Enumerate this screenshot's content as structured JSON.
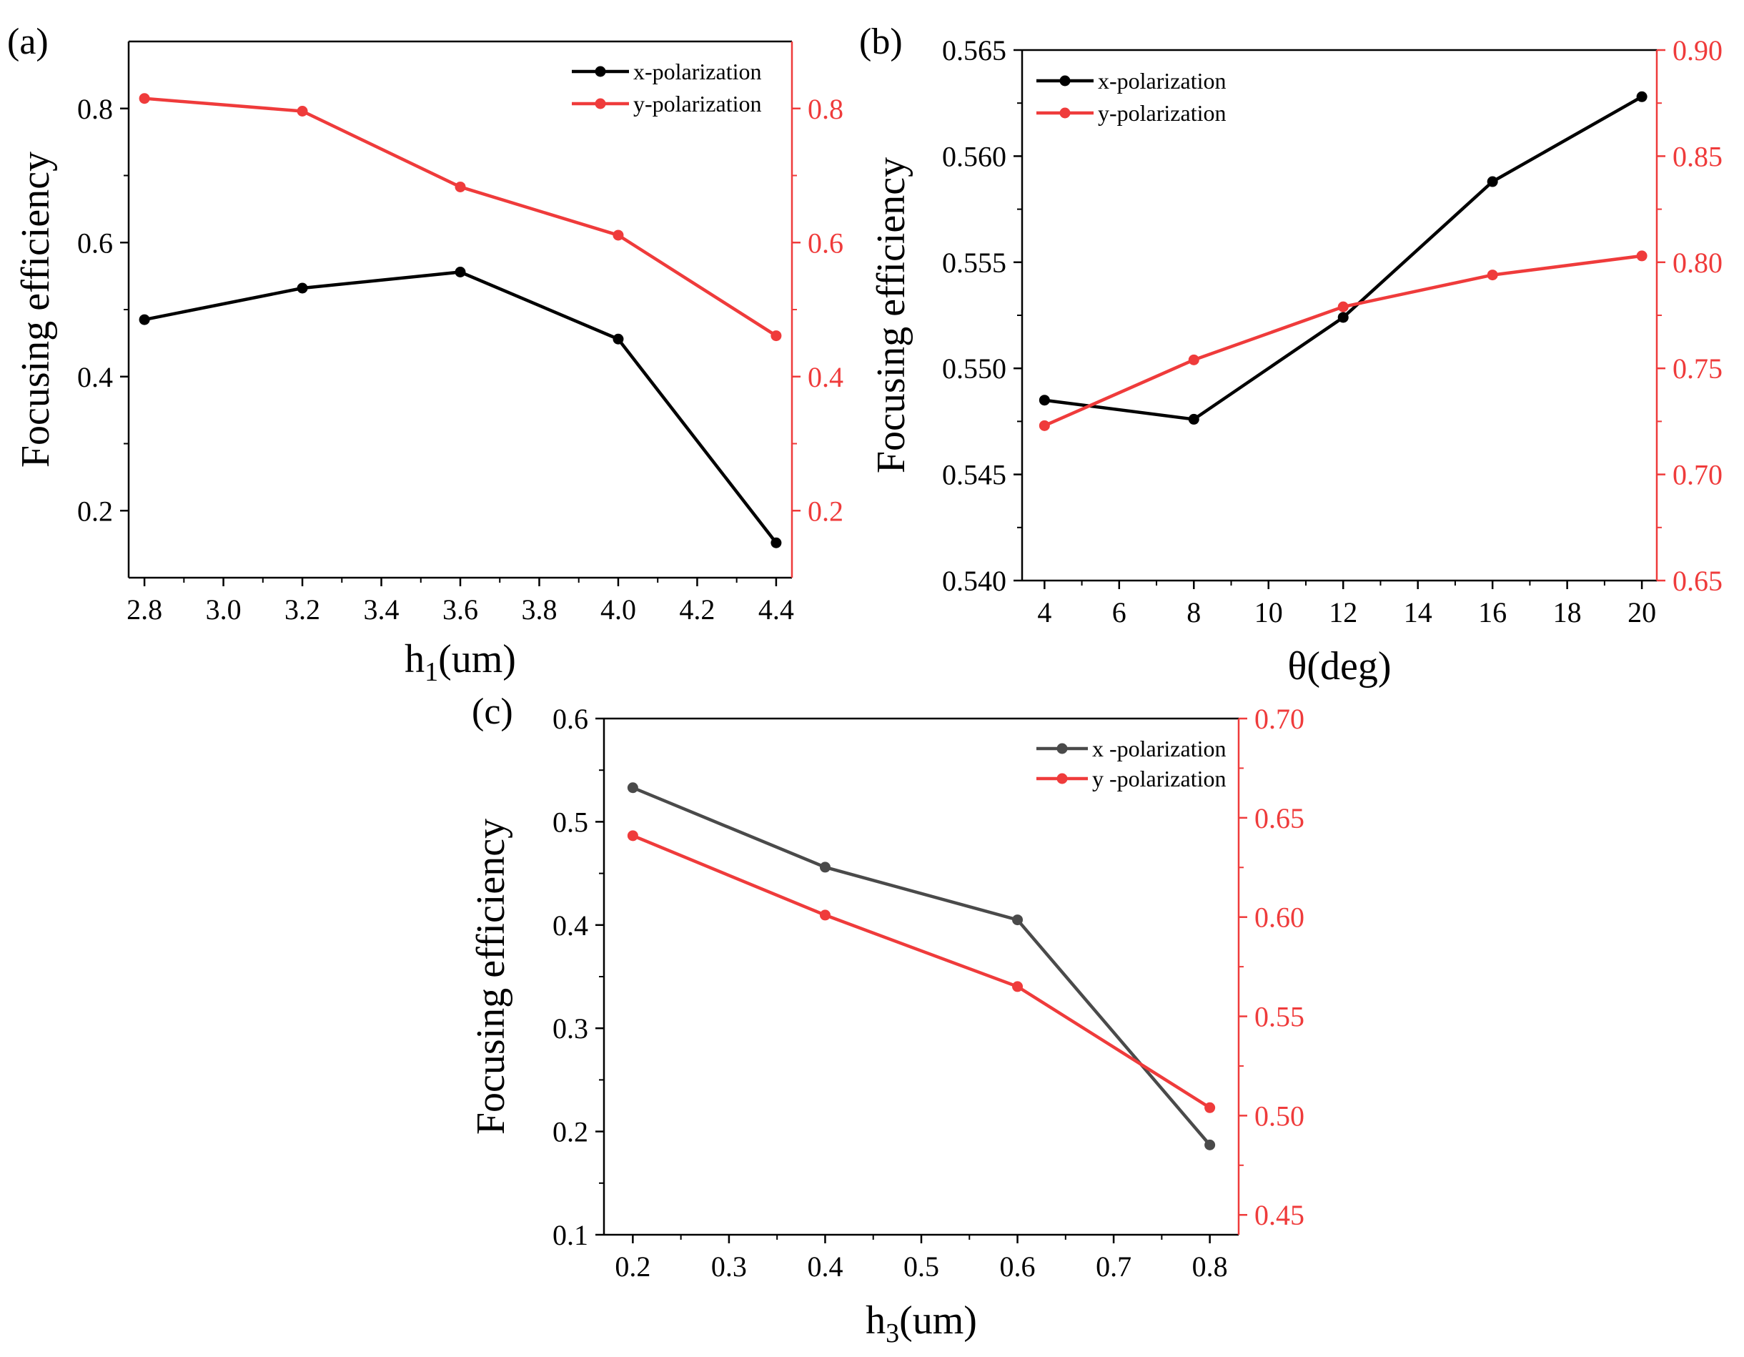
{
  "colors": {
    "x": "#000000",
    "x_c": "#4a4a4a",
    "y": "#ef3b3b",
    "axis": "#000000"
  },
  "chart_data": [
    {
      "type": "line",
      "panel_label": "(a)",
      "xlabel": {
        "main": "h",
        "sub": "1",
        "unit": "(um)"
      },
      "ylabel": "Focusing efficiency",
      "x_ticks": [
        2.8,
        3.0,
        3.2,
        3.4,
        3.6,
        3.8,
        4.0,
        4.2,
        4.4
      ],
      "x_tick_labels": [
        "2.8",
        "3.0",
        "3.2",
        "3.4",
        "3.6",
        "3.8",
        "4.0",
        "4.2",
        "4.4"
      ],
      "xlim": [
        2.76,
        4.44
      ],
      "y_left": {
        "lim": [
          0.1,
          0.9
        ],
        "ticks": [
          0.2,
          0.4,
          0.6,
          0.8
        ],
        "tick_labels": [
          "0.2",
          "0.4",
          "0.6",
          "0.8"
        ]
      },
      "y_right": {
        "lim": [
          0.1,
          0.9
        ],
        "ticks": [
          0.2,
          0.4,
          0.6,
          0.8
        ],
        "tick_labels": [
          "0.2",
          "0.4",
          "0.6",
          "0.8"
        ]
      },
      "series": [
        {
          "name": "x-polarization",
          "axis": "left",
          "color_key": "x",
          "x": [
            2.8,
            3.2,
            3.6,
            4.0,
            4.4
          ],
          "values": [
            0.485,
            0.532,
            0.556,
            0.456,
            0.152
          ]
        },
        {
          "name": "y-polarization",
          "axis": "right",
          "color_key": "y",
          "x": [
            2.8,
            3.2,
            3.6,
            4.0,
            4.4
          ],
          "values": [
            0.815,
            0.796,
            0.683,
            0.611,
            0.461
          ]
        }
      ]
    },
    {
      "type": "line",
      "panel_label": "(b)",
      "xlabel": {
        "main": "θ",
        "sub": "",
        "unit": "(deg)"
      },
      "ylabel": "Focusing efficiency",
      "x_ticks": [
        4,
        6,
        8,
        10,
        12,
        14,
        16,
        18,
        20
      ],
      "x_tick_labels": [
        "4",
        "6",
        "8",
        "10",
        "12",
        "14",
        "16",
        "18",
        "20"
      ],
      "xlim": [
        3.4,
        20.4
      ],
      "y_left": {
        "lim": [
          0.54,
          0.565
        ],
        "ticks": [
          0.54,
          0.545,
          0.55,
          0.555,
          0.56,
          0.565
        ],
        "tick_labels": [
          "0.540",
          "0.545",
          "0.550",
          "0.555",
          "0.560",
          "0.565"
        ]
      },
      "y_right": {
        "lim": [
          0.65,
          0.9
        ],
        "ticks": [
          0.65,
          0.7,
          0.75,
          0.8,
          0.85,
          0.9
        ],
        "tick_labels": [
          "0.65",
          "0.70",
          "0.75",
          "0.80",
          "0.85",
          "0.90"
        ]
      },
      "series": [
        {
          "name": "x-polarization",
          "axis": "left",
          "color_key": "x",
          "x": [
            4,
            8,
            12,
            16,
            20
          ],
          "values": [
            0.5485,
            0.5476,
            0.5524,
            0.5588,
            0.5628
          ]
        },
        {
          "name": "y-polarization",
          "axis": "right",
          "color_key": "y",
          "x": [
            4,
            8,
            12,
            16,
            20
          ],
          "values": [
            0.723,
            0.754,
            0.779,
            0.794,
            0.803
          ]
        }
      ]
    },
    {
      "type": "line",
      "panel_label": "(c)",
      "xlabel": {
        "main": "h",
        "sub": "3",
        "unit": "(um)"
      },
      "ylabel": "Focusing efficiency",
      "x_ticks": [
        0.2,
        0.3,
        0.4,
        0.5,
        0.6,
        0.7,
        0.8
      ],
      "x_tick_labels": [
        "0.2",
        "0.3",
        "0.4",
        "0.5",
        "0.6",
        "0.7",
        "0.8"
      ],
      "xlim": [
        0.17,
        0.83
      ],
      "y_left": {
        "lim": [
          0.1,
          0.6
        ],
        "ticks": [
          0.1,
          0.2,
          0.3,
          0.4,
          0.5,
          0.6
        ],
        "tick_labels": [
          "0.1",
          "0.2",
          "0.3",
          "0.4",
          "0.5",
          "0.6"
        ]
      },
      "y_right": {
        "lim": [
          0.44,
          0.7
        ],
        "ticks": [
          0.45,
          0.5,
          0.55,
          0.6,
          0.65,
          0.7
        ],
        "tick_labels": [
          "0.45",
          "0.50",
          "0.55",
          "0.60",
          "0.65",
          "0.70"
        ]
      },
      "series": [
        {
          "name": "x -polarization",
          "axis": "left",
          "color_key": "x_c",
          "x": [
            0.2,
            0.4,
            0.6,
            0.8
          ],
          "values": [
            0.533,
            0.456,
            0.405,
            0.187
          ]
        },
        {
          "name": "y -polarization",
          "axis": "right",
          "color_key": "y",
          "x": [
            0.2,
            0.4,
            0.6,
            0.8
          ],
          "values": [
            0.641,
            0.601,
            0.565,
            0.504
          ]
        }
      ]
    }
  ]
}
